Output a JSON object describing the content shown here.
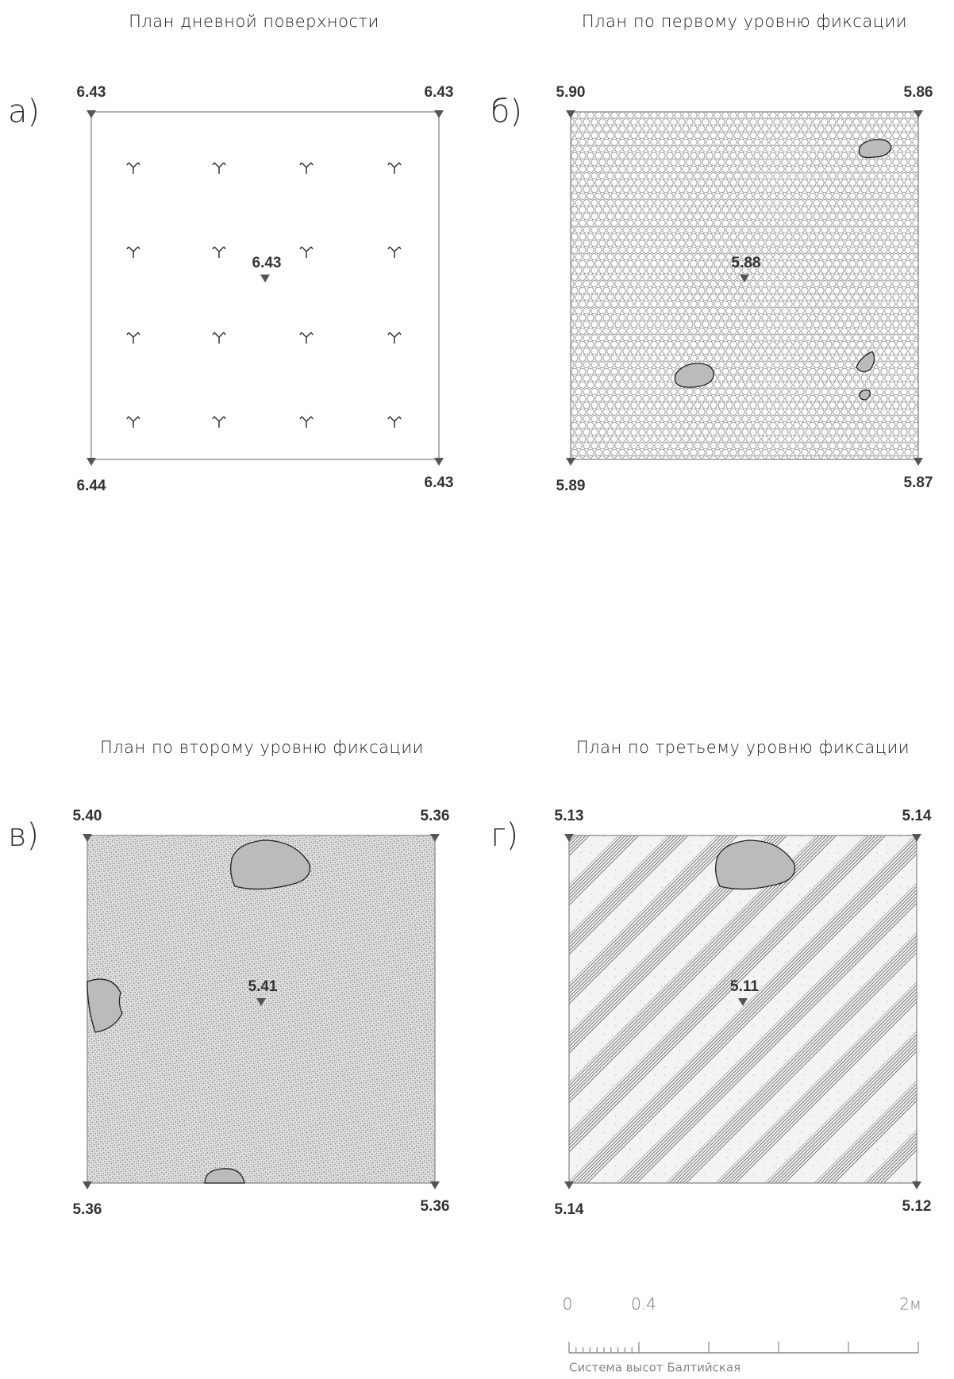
{
  "panels": [
    {
      "title": "План дневной поверхности",
      "letter": "а)",
      "corners": {
        "top_left": "6.43",
        "top_right": "6.43",
        "bottom_left": "6.44",
        "bottom_right": "6.43"
      },
      "center": "6.43"
    },
    {
      "title": "План по первому уровню фиксации",
      "letter": "б)",
      "corners": {
        "top_left": "5.90",
        "top_right": "5.86",
        "bottom_left": "5.89",
        "bottom_right": "5.87"
      },
      "center": "5.88"
    },
    {
      "title": "План по второму уровню фиксации",
      "letter": "в)",
      "corners": {
        "top_left": "5.40",
        "top_right": "5.36",
        "bottom_left": "5.36",
        "bottom_right": "5.36"
      },
      "center": "5.41"
    },
    {
      "title": "План по третьему уровню фиксации",
      "letter": "г)",
      "corners": {
        "top_left": "5.13",
        "top_right": "5.14",
        "bottom_left": "5.14",
        "bottom_right": "5.12"
      },
      "center": "5.11"
    }
  ],
  "scale_bar": {
    "labels": [
      "0",
      "0.4",
      "2м"
    ],
    "caption": "Система высот Балтийская"
  }
}
